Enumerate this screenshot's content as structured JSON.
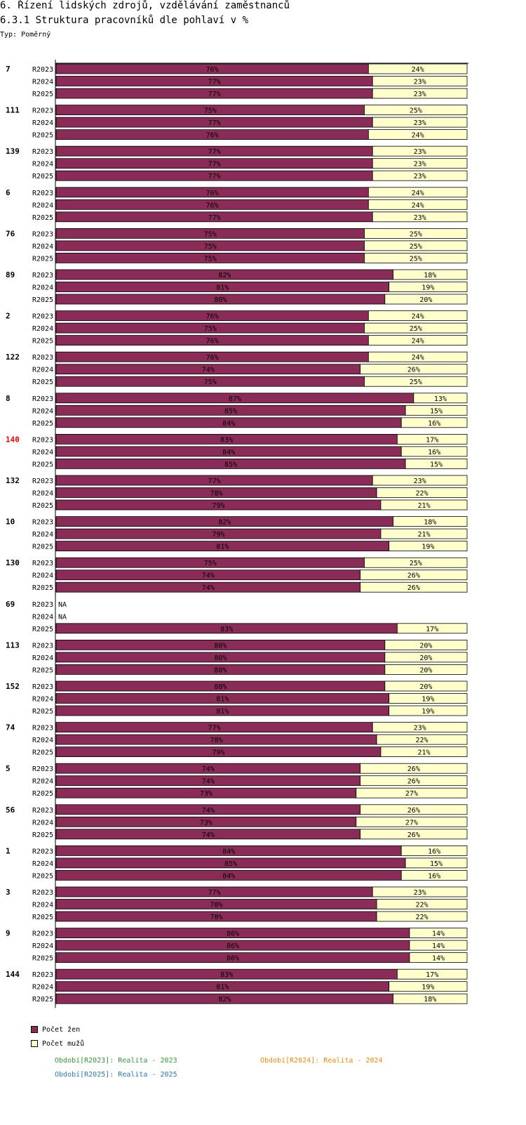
{
  "header": {
    "title": "6. Řízení lidských zdrojů, vzdělávání zaměstnanců",
    "subtitle": "6.3.1 Struktura pracovníků dle pohlaví v %",
    "type_label": "Typ: Poměrný"
  },
  "colors": {
    "women": "#8b2b57",
    "men": "#ffffcc",
    "highlight": "#ff0000",
    "p2023": "#339933",
    "p2024": "#ff8800",
    "p2025": "#2a7ab0"
  },
  "legend": {
    "women": "Počet žen",
    "men": "Počet mužů"
  },
  "period_notes": {
    "r2023": "Období[R2023]: Realita - 2023",
    "r2024": "Období[R2024]: Realita - 2024",
    "r2025": "Období[R2025]: Realita - 2025"
  },
  "chart_data": {
    "type": "bar",
    "stacked": true,
    "orientation": "horizontal",
    "title": "6.3.1 Struktura pracovníků dle pohlaví v %",
    "xlim": [
      0,
      100
    ],
    "series_names": [
      "Počet žen",
      "Počet mužů"
    ],
    "periods": [
      "R2023",
      "R2024",
      "R2025"
    ],
    "groups": [
      {
        "name": "7",
        "women": [
          76,
          77,
          77
        ],
        "men": [
          24,
          23,
          23
        ]
      },
      {
        "name": "111",
        "women": [
          75,
          77,
          76
        ],
        "men": [
          25,
          23,
          24
        ]
      },
      {
        "name": "139",
        "women": [
          77,
          77,
          77
        ],
        "men": [
          23,
          23,
          23
        ]
      },
      {
        "name": "6",
        "women": [
          76,
          76,
          77
        ],
        "men": [
          24,
          24,
          23
        ]
      },
      {
        "name": "76",
        "women": [
          75,
          75,
          75
        ],
        "men": [
          25,
          25,
          25
        ]
      },
      {
        "name": "89",
        "women": [
          82,
          81,
          80
        ],
        "men": [
          18,
          19,
          20
        ]
      },
      {
        "name": "2",
        "women": [
          76,
          75,
          76
        ],
        "men": [
          24,
          25,
          24
        ]
      },
      {
        "name": "122",
        "women": [
          76,
          74,
          75
        ],
        "men": [
          24,
          26,
          25
        ]
      },
      {
        "name": "8",
        "women": [
          87,
          85,
          84
        ],
        "men": [
          13,
          15,
          16
        ]
      },
      {
        "name": "140",
        "women": [
          83,
          84,
          85
        ],
        "men": [
          17,
          16,
          15
        ],
        "highlight": true
      },
      {
        "name": "132",
        "women": [
          77,
          78,
          79
        ],
        "men": [
          23,
          22,
          21
        ]
      },
      {
        "name": "10",
        "women": [
          82,
          79,
          81
        ],
        "men": [
          18,
          21,
          19
        ]
      },
      {
        "name": "130",
        "women": [
          75,
          74,
          74
        ],
        "men": [
          25,
          26,
          26
        ]
      },
      {
        "name": "69",
        "women": [
          null,
          null,
          83
        ],
        "men": [
          null,
          null,
          17
        ]
      },
      {
        "name": "113",
        "women": [
          80,
          80,
          80
        ],
        "men": [
          20,
          20,
          20
        ]
      },
      {
        "name": "152",
        "women": [
          80,
          81,
          81
        ],
        "men": [
          20,
          19,
          19
        ]
      },
      {
        "name": "74",
        "women": [
          77,
          78,
          79
        ],
        "men": [
          23,
          22,
          21
        ]
      },
      {
        "name": "5",
        "women": [
          74,
          74,
          73
        ],
        "men": [
          26,
          26,
          27
        ]
      },
      {
        "name": "56",
        "women": [
          74,
          73,
          74
        ],
        "men": [
          26,
          27,
          26
        ]
      },
      {
        "name": "1",
        "women": [
          84,
          85,
          84
        ],
        "men": [
          16,
          15,
          16
        ]
      },
      {
        "name": "3",
        "women": [
          77,
          78,
          78
        ],
        "men": [
          23,
          22,
          22
        ]
      },
      {
        "name": "9",
        "women": [
          86,
          86,
          86
        ],
        "men": [
          14,
          14,
          14
        ]
      },
      {
        "name": "144",
        "women": [
          83,
          81,
          82
        ],
        "men": [
          17,
          19,
          18
        ]
      }
    ],
    "na_label": "NA",
    "value_suffix": "%"
  }
}
